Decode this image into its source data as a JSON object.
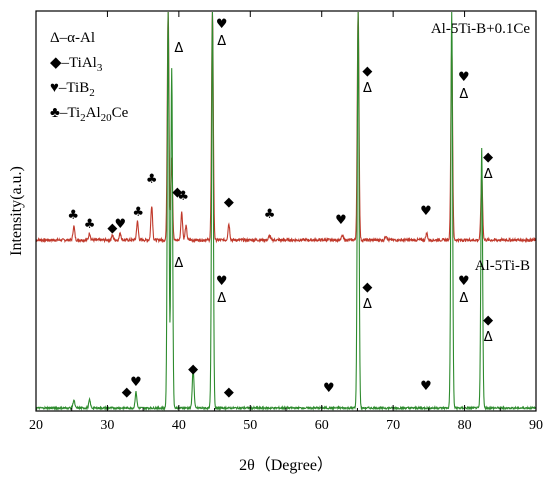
{
  "chart_data": {
    "type": "line",
    "xlabel": "2θ（Degree）",
    "ylabel": "Intensity(a.u.)",
    "xlim": [
      20,
      90
    ],
    "x_ticks": [
      "20",
      "30",
      "40",
      "50",
      "60",
      "70",
      "80",
      "90"
    ],
    "grid": false,
    "legend_position": "top-left",
    "legend": [
      {
        "symbol": "Δ",
        "symbol_name": "delta-icon",
        "label": "–α-Al"
      },
      {
        "symbol": "◆",
        "symbol_name": "diamond-icon",
        "label": "–TiAl",
        "sub": "3",
        "rest": ""
      },
      {
        "symbol": "♥",
        "symbol_name": "heart-icon",
        "label": "–TiB",
        "sub": "2",
        "rest": ""
      },
      {
        "symbol": "♣",
        "symbol_name": "club-icon",
        "label": "–Ti",
        "sub": "2",
        "rest": "Al",
        "sub2": "20",
        "rest2": "Ce"
      }
    ],
    "series": [
      {
        "name": "Al-5Ti-B+0.1Ce",
        "color": "#c0392b",
        "baseline": 0.03,
        "peaks": [
          {
            "x": 25.3,
            "h": 0.06
          },
          {
            "x": 27.5,
            "h": 0.03
          },
          {
            "x": 30.7,
            "h": 0.02
          },
          {
            "x": 31.8,
            "h": 0.03
          },
          {
            "x": 34.2,
            "h": 0.08
          },
          {
            "x": 36.2,
            "h": 0.15
          },
          {
            "x": 38.5,
            "h": 1.0
          },
          {
            "x": 39.0,
            "h": 0.35
          },
          {
            "x": 40.4,
            "h": 0.12
          },
          {
            "x": 41.0,
            "h": 0.06
          },
          {
            "x": 44.7,
            "h": 1.0
          },
          {
            "x": 47.0,
            "h": 0.07
          },
          {
            "x": 52.7,
            "h": 0.02
          },
          {
            "x": 62.9,
            "h": 0.02
          },
          {
            "x": 65.1,
            "h": 1.0
          },
          {
            "x": 69.0,
            "h": 0.02
          },
          {
            "x": 74.7,
            "h": 0.03
          },
          {
            "x": 78.2,
            "h": 0.85
          },
          {
            "x": 82.4,
            "h": 0.28
          }
        ],
        "markers": [
          {
            "x": 25.2,
            "sym": "♣",
            "name": "club-icon"
          },
          {
            "x": 27.5,
            "sym": "♣",
            "name": "club-icon"
          },
          {
            "x": 30.7,
            "sym": "◆",
            "name": "diamond-icon"
          },
          {
            "x": 31.8,
            "sym": "♥",
            "name": "heart-icon"
          },
          {
            "x": 34.3,
            "sym": "♣",
            "name": "club-icon"
          },
          {
            "x": 36.2,
            "sym": "♣",
            "name": "club-icon"
          },
          {
            "x": 39.8,
            "sym": "◆",
            "name": "diamond-icon"
          },
          {
            "x": 40.6,
            "sym": "♣",
            "name": "club-icon"
          },
          {
            "x": 47.0,
            "sym": "◆",
            "name": "diamond-icon"
          },
          {
            "x": 52.7,
            "sym": "♣",
            "name": "club-icon"
          },
          {
            "x": 62.7,
            "sym": "♥",
            "name": "heart-icon"
          },
          {
            "x": 74.6,
            "sym": "♥",
            "name": "heart-icon"
          },
          {
            "x": 40.0,
            "sym": "Δ",
            "name": "delta-icon",
            "top": true
          },
          {
            "x": 46.0,
            "sym": "♥",
            "name": "heart-icon",
            "top": true
          },
          {
            "x": 46.0,
            "sym": "Δ",
            "name": "delta-icon",
            "top": true
          },
          {
            "x": 66.4,
            "sym": "◆",
            "name": "diamond-icon",
            "top": true
          },
          {
            "x": 66.4,
            "sym": "Δ",
            "name": "delta-icon",
            "top": true
          },
          {
            "x": 79.9,
            "sym": "♥",
            "name": "heart-icon",
            "top": true
          },
          {
            "x": 79.9,
            "sym": "Δ",
            "name": "delta-icon",
            "top": true
          },
          {
            "x": 83.3,
            "sym": "◆",
            "name": "diamond-icon",
            "top": true
          },
          {
            "x": 83.3,
            "sym": "Δ",
            "name": "delta-icon",
            "top": true
          }
        ]
      },
      {
        "name": "Al-5Ti-B",
        "color": "#2e8b2e",
        "baseline": 0.02,
        "peaks": [
          {
            "x": 25.3,
            "h": 0.02
          },
          {
            "x": 27.5,
            "h": 0.02
          },
          {
            "x": 34.0,
            "h": 0.04
          },
          {
            "x": 38.5,
            "h": 1.0
          },
          {
            "x": 39.0,
            "h": 0.85
          },
          {
            "x": 42.0,
            "h": 0.1
          },
          {
            "x": 44.7,
            "h": 1.0
          },
          {
            "x": 65.1,
            "h": 1.0
          },
          {
            "x": 78.2,
            "h": 1.0
          },
          {
            "x": 82.4,
            "h": 0.65
          }
        ],
        "markers": [
          {
            "x": 32.7,
            "sym": "◆",
            "name": "diamond-icon"
          },
          {
            "x": 34.0,
            "sym": "♥",
            "name": "heart-icon"
          },
          {
            "x": 42.0,
            "sym": "◆",
            "name": "diamond-icon"
          },
          {
            "x": 47.0,
            "sym": "◆",
            "name": "diamond-icon"
          },
          {
            "x": 61.0,
            "sym": "♥",
            "name": "heart-icon"
          },
          {
            "x": 74.6,
            "sym": "♥",
            "name": "heart-icon"
          },
          {
            "x": 40.0,
            "sym": "Δ",
            "name": "delta-icon",
            "top": true
          },
          {
            "x": 46.0,
            "sym": "♥",
            "name": "heart-icon",
            "top": true
          },
          {
            "x": 46.0,
            "sym": "Δ",
            "name": "delta-icon",
            "top": true
          },
          {
            "x": 66.4,
            "sym": "◆",
            "name": "diamond-icon",
            "top": true
          },
          {
            "x": 66.4,
            "sym": "Δ",
            "name": "delta-icon",
            "top": true
          },
          {
            "x": 79.9,
            "sym": "♥",
            "name": "heart-icon",
            "top": true
          },
          {
            "x": 79.9,
            "sym": "Δ",
            "name": "delta-icon",
            "top": true
          },
          {
            "x": 83.3,
            "sym": "◆",
            "name": "diamond-icon",
            "top": true
          },
          {
            "x": 83.3,
            "sym": "Δ",
            "name": "delta-icon",
            "top": true
          }
        ]
      }
    ]
  }
}
